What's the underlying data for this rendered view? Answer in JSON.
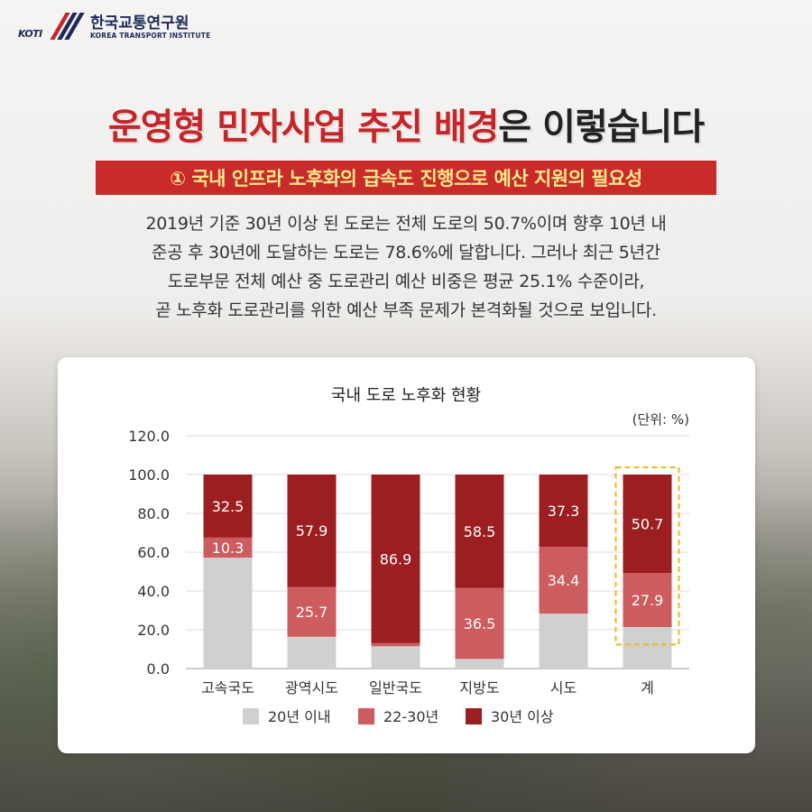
{
  "logo": {
    "mark": "KOTI",
    "name_ko": "한국교통연구원",
    "name_en": "KOREA TRANSPORT INSTITUTE"
  },
  "headline": {
    "part_red": "운영형 민자사업 추진 배경",
    "part_dark": "은 이렇습니다"
  },
  "subhead": "① 국내 인프라 노후화의 급속도 진행으로 예산 지원의 필요성",
  "body_lines": [
    "2019년 기준 30년 이상 된 도로는 전체 도로의 50.7%이며 향후 10년 내",
    "준공 후 30년에 도달하는 도로는 78.6%에 달합니다. 그러나 최근 5년간",
    "도로부문 전체 예산 중 도로관리 예산 비중은 평균 25.1% 수준이라,",
    "곧 노후화 도로관리를 위한 예산 부족 문제가 본격화될 것으로 보입니다."
  ],
  "colors": {
    "brand_red": "#c4262a",
    "series_under20": "#d0d0d0",
    "series_22_30": "#cd5c5f",
    "series_over30": "#9b1e21",
    "highlight": "#f2b51c"
  },
  "chart_data": {
    "type": "bar",
    "stacked": true,
    "title": "국내 도로 노후화 현황",
    "unit": "(단위: %)",
    "categories": [
      "고속국도",
      "광역시도",
      "일반국도",
      "지방도",
      "시도",
      "계"
    ],
    "series": [
      {
        "name": "20년 이내",
        "values": [
          57.2,
          16.4,
          11.5,
          5.0,
          28.3,
          21.4
        ],
        "labels": [
          null,
          null,
          null,
          null,
          null,
          null
        ]
      },
      {
        "name": "22-30년",
        "values": [
          10.3,
          25.7,
          1.6,
          36.5,
          34.4,
          27.9
        ],
        "labels": [
          "10.3",
          "25.7",
          "1.6",
          "36.5",
          "34.4",
          "27.9"
        ]
      },
      {
        "name": "30년 이상",
        "values": [
          32.5,
          57.9,
          86.9,
          58.5,
          37.3,
          50.7
        ],
        "labels": [
          "32.5",
          "57.9",
          "86.9",
          "58.5",
          "37.3",
          "50.7"
        ]
      }
    ],
    "ylim": [
      0,
      120
    ],
    "yticks": [
      "0.0",
      "20.0",
      "40.0",
      "60.0",
      "80.0",
      "100.0",
      "120.0"
    ],
    "highlight_category": "계",
    "grid": true,
    "legend": "bottom"
  }
}
